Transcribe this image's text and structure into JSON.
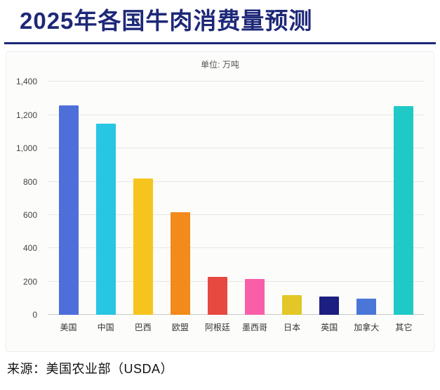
{
  "page": {
    "title": "2025年各国牛肉消费量预测",
    "source": "来源：美国农业部（USDA）"
  },
  "colors": {
    "title_navy": "#1e2878",
    "grid": "#e7e7e5",
    "panel_bg": "#fcfcfa"
  },
  "chart_data": {
    "type": "bar",
    "title": "单位: 万吨",
    "categories": [
      "美国",
      "中国",
      "巴西",
      "欧盟",
      "阿根廷",
      "墨西哥",
      "日本",
      "英国",
      "加拿大",
      "其它"
    ],
    "values": [
      1260,
      1150,
      820,
      615,
      230,
      215,
      120,
      110,
      100,
      1255
    ],
    "bar_colors": [
      "#4e6fd9",
      "#27c6e3",
      "#f6c51d",
      "#f28a1c",
      "#e74940",
      "#f95fa8",
      "#e3c627",
      "#1c1e80",
      "#4a76d8",
      "#1fc9c6"
    ],
    "xlabel": "",
    "ylabel": "",
    "ylim": [
      0,
      1400
    ],
    "ytick_labels": [
      "0",
      "200",
      "400",
      "600",
      "800",
      "1,000",
      "1,200",
      "1,400"
    ],
    "grid": true,
    "legend": false
  }
}
